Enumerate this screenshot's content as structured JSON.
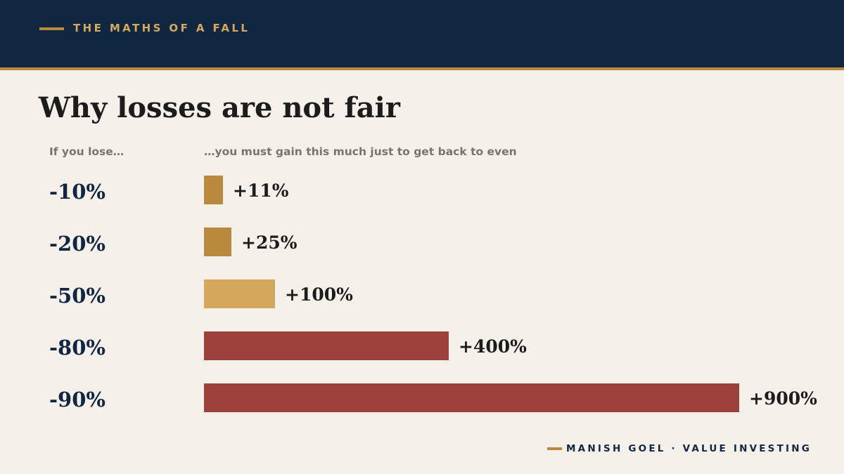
{
  "header": {
    "kicker": "THE MATHS OF A FALL"
  },
  "title": "Why losses are not fair",
  "columns": {
    "left": "If you lose…",
    "right": "…you must gain this much just to get back to even"
  },
  "chart_data": {
    "type": "bar",
    "orientation": "horizontal",
    "categories": [
      "-10%",
      "-20%",
      "-50%",
      "-80%",
      "-90%"
    ],
    "values": [
      11,
      25,
      100,
      400,
      900
    ],
    "value_labels": [
      "+11%",
      "+25%",
      "+100%",
      "+400%",
      "+900%"
    ],
    "colors": [
      "#b98a3e",
      "#b98a3e",
      "#d4a75c",
      "#9c413b",
      "#9c413b"
    ],
    "title": "Why losses are not fair",
    "xlabel": "",
    "ylabel": "",
    "grid": false
  },
  "footer": {
    "text": "MANISH GOEL  ·  VALUE INVESTING"
  }
}
